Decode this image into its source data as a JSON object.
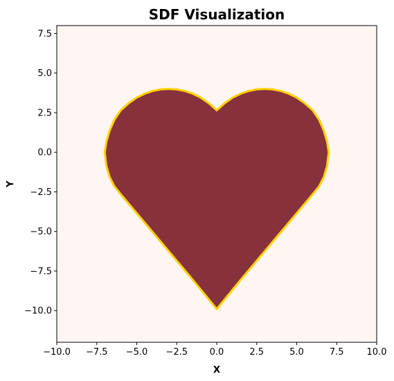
{
  "chart_data": {
    "type": "area",
    "title": "SDF Visualization",
    "xlabel": "X",
    "ylabel": "Y",
    "xlim": [
      -10.0,
      10.0
    ],
    "ylim": [
      -12.0,
      8.0
    ],
    "xticks": [
      -10.0,
      -7.5,
      -5.0,
      -2.5,
      0.0,
      2.5,
      5.0,
      7.5,
      10.0
    ],
    "yticks": [
      -10.0,
      -7.5,
      -5.0,
      -2.5,
      0.0,
      2.5,
      5.0,
      7.5
    ],
    "xtick_labels": [
      "−10.0",
      "−7.5",
      "−5.0",
      "−2.5",
      "0.0",
      "2.5",
      "5.0",
      "7.5",
      "10.0"
    ],
    "ytick_labels": [
      "−10.0",
      "−7.5",
      "−5.0",
      "−2.5",
      "0.0",
      "2.5",
      "5.0",
      "7.5"
    ],
    "grid": false,
    "shape": {
      "name": "heart",
      "lobe_centers": [
        [
          -3.0,
          0.0
        ],
        [
          3.0,
          0.0
        ]
      ],
      "lobe_radius": 4.0,
      "tip": [
        0.0,
        -9.9
      ],
      "outline": [
        [
          0.0,
          2.65
        ],
        [
          -0.5,
          3.1
        ],
        [
          -1.0,
          3.45
        ],
        [
          -1.5,
          3.7
        ],
        [
          -2.0,
          3.87
        ],
        [
          -2.5,
          3.97
        ],
        [
          -3.0,
          4.0
        ],
        [
          -3.5,
          3.97
        ],
        [
          -4.0,
          3.87
        ],
        [
          -4.5,
          3.7
        ],
        [
          -5.0,
          3.45
        ],
        [
          -5.5,
          3.1
        ],
        [
          -6.0,
          2.65
        ],
        [
          -6.4,
          2.05
        ],
        [
          -6.7,
          1.35
        ],
        [
          -6.9,
          0.65
        ],
        [
          -7.0,
          0.0
        ],
        [
          -6.9,
          -0.85
        ],
        [
          -6.7,
          -1.55
        ],
        [
          -6.4,
          -2.15
        ],
        [
          -6.0,
          -2.65
        ],
        [
          -4.5,
          -4.45
        ],
        [
          -3.0,
          -6.25
        ],
        [
          -1.5,
          -8.05
        ],
        [
          0.0,
          -9.9
        ],
        [
          1.5,
          -8.05
        ],
        [
          3.0,
          -6.25
        ],
        [
          4.5,
          -4.45
        ],
        [
          6.0,
          -2.65
        ],
        [
          6.4,
          -2.15
        ],
        [
          6.7,
          -1.55
        ],
        [
          6.9,
          -0.85
        ],
        [
          7.0,
          0.0
        ],
        [
          6.9,
          0.65
        ],
        [
          6.7,
          1.35
        ],
        [
          6.4,
          2.05
        ],
        [
          6.0,
          2.65
        ],
        [
          5.5,
          3.1
        ],
        [
          5.0,
          3.45
        ],
        [
          4.5,
          3.7
        ],
        [
          4.0,
          3.87
        ],
        [
          3.5,
          3.97
        ],
        [
          3.0,
          4.0
        ],
        [
          2.5,
          3.97
        ],
        [
          2.0,
          3.87
        ],
        [
          1.5,
          3.7
        ],
        [
          1.0,
          3.45
        ],
        [
          0.5,
          3.1
        ]
      ]
    },
    "colors": {
      "background": "#fff5f2",
      "fill": "#86313c",
      "outline": "#ffd000"
    }
  }
}
